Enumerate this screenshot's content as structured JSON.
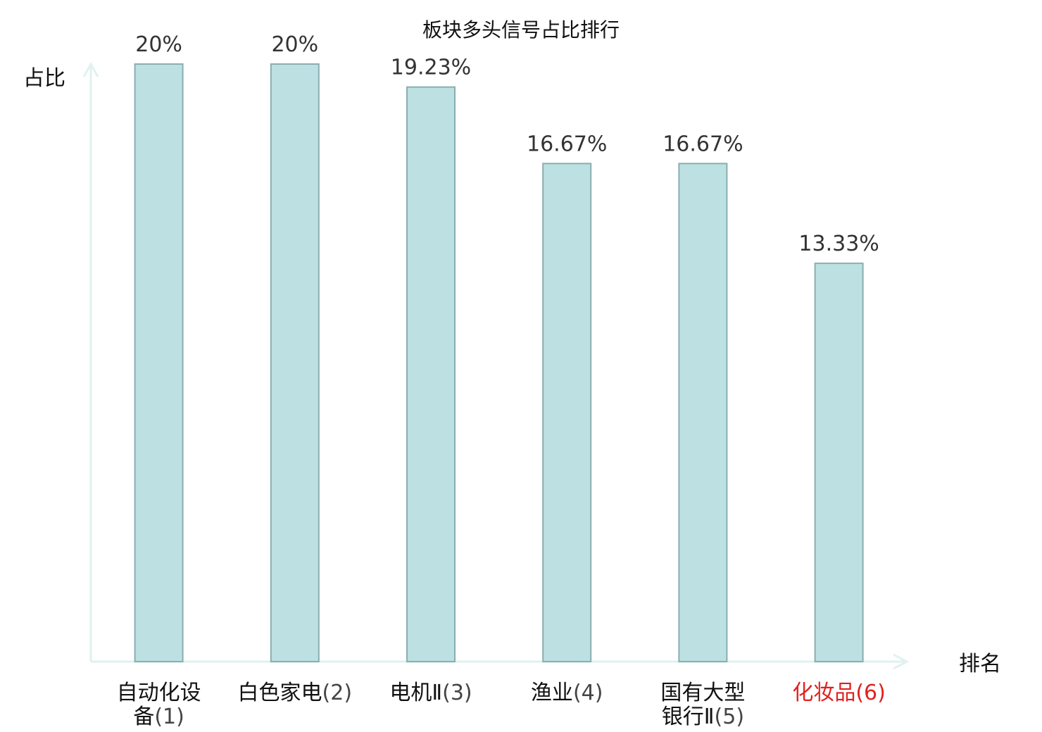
{
  "chart_data": {
    "type": "bar",
    "title": "板块多头信号占比排行",
    "ylabel": "占比",
    "xlabel": "排名",
    "ylim": [
      0,
      20
    ],
    "grid": false,
    "legend": "none",
    "categories": [
      {
        "lines": [
          "自动化设",
          "备(1)"
        ],
        "name_part": "自动化设备",
        "rank_part": "(1)"
      },
      {
        "lines": [
          "白色家电(2)"
        ],
        "name_part": "白色家电",
        "rank_part": "(2)"
      },
      {
        "lines": [
          "电机Ⅱ(3)"
        ],
        "name_part": "电机Ⅱ",
        "rank_part": "(3)"
      },
      {
        "lines": [
          "渔业(4)"
        ],
        "name_part": "渔业",
        "rank_part": "(4)"
      },
      {
        "lines": [
          "国有大型",
          "银行Ⅱ(5)"
        ],
        "name_part": "国有大型银行Ⅱ",
        "rank_part": "(5)"
      },
      {
        "lines": [
          "化妆品(6)"
        ],
        "name_part": "化妆品",
        "rank_part": "(6)",
        "highlight": true
      }
    ],
    "values": [
      20,
      20,
      19.23,
      16.67,
      16.67,
      13.33
    ],
    "value_labels": [
      "20%",
      "20%",
      "19.23%",
      "16.67%",
      "16.67%",
      "13.33%"
    ],
    "colors": {
      "bar_fill": "#bde1e3",
      "bar_stroke": "#8aaeb1",
      "axis": "#dff2ef",
      "highlight_label": "#e0211f",
      "label_name": "#111111",
      "label_rank": "#444444",
      "value_label": "#333333"
    }
  }
}
